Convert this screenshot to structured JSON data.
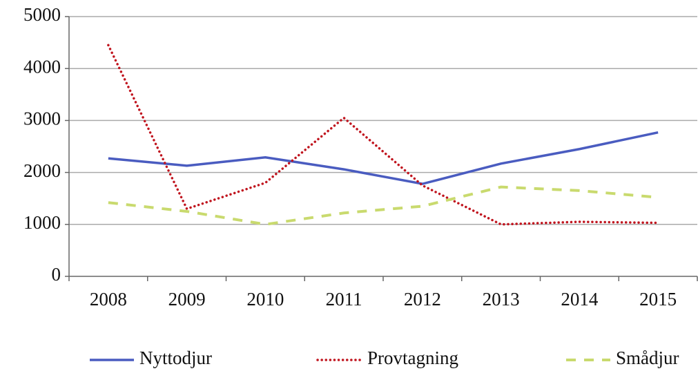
{
  "chart_data": {
    "type": "line",
    "categories": [
      "2008",
      "2009",
      "2010",
      "2011",
      "2012",
      "2013",
      "2014",
      "2015"
    ],
    "series": [
      {
        "name": "Nyttodjur",
        "color": "#4a5cc0",
        "style": "solid",
        "values": [
          2270,
          2130,
          2290,
          2060,
          1780,
          2170,
          2450,
          2770
        ]
      },
      {
        "name": "Provtagning",
        "color": "#c0141e",
        "style": "dotted",
        "values": [
          4450,
          1300,
          1800,
          3050,
          1750,
          1000,
          1050,
          1030
        ]
      },
      {
        "name": "Smådjur",
        "color": "#c9da6e",
        "style": "dashed",
        "values": [
          1420,
          1250,
          1000,
          1220,
          1350,
          1720,
          1650,
          1520
        ]
      }
    ],
    "ylim": [
      0,
      5000
    ],
    "yticks": [
      0,
      1000,
      2000,
      3000,
      4000,
      5000
    ],
    "grid": true,
    "legend": "bottom"
  }
}
